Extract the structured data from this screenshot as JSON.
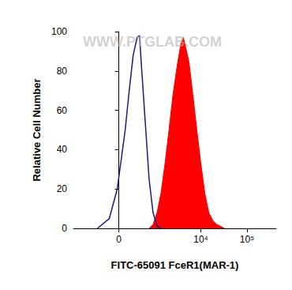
{
  "chart_data": {
    "type": "histogram",
    "x_label": "FITC-65091 FceR1(MAR-1)",
    "y_label": "Relative Cell Number",
    "annotations": [
      "WWW.PTGLAB.COM"
    ],
    "xlim": [
      -1600,
      430000
    ],
    "xticks": [
      {
        "value": 0,
        "label": "0"
      },
      {
        "value": 10000,
        "label": "10⁴"
      },
      {
        "value": 100000,
        "label": "10⁵"
      }
    ],
    "ylim": [
      0,
      100
    ],
    "yticks": [
      0,
      20,
      40,
      60,
      80,
      100
    ],
    "grid": false,
    "series": [
      {
        "type": "line",
        "color": "#1a1a80",
        "x": [
          -432,
          -165,
          -27,
          108,
          181,
          260,
          350,
          410,
          454,
          576,
          721,
          892,
          1102,
          1353
        ],
        "values": [
          0,
          5,
          20,
          50,
          70,
          88,
          97,
          98,
          85,
          55,
          25,
          8,
          1,
          0
        ]
      },
      {
        "type": "area",
        "color": "#ff0000",
        "x": [
          721,
          892,
          1102,
          1353,
          1658,
          2030,
          2482,
          3032,
          3698,
          4167,
          4693,
          5497,
          6716,
          8194,
          10000,
          12190,
          14870,
          18130,
          22110,
          26960,
          32900
        ],
        "values": [
          0,
          2,
          8,
          18,
          33,
          50,
          68,
          82,
          94,
          97,
          92,
          85,
          68,
          50,
          33,
          18,
          8,
          4,
          2,
          1,
          0
        ]
      }
    ]
  }
}
